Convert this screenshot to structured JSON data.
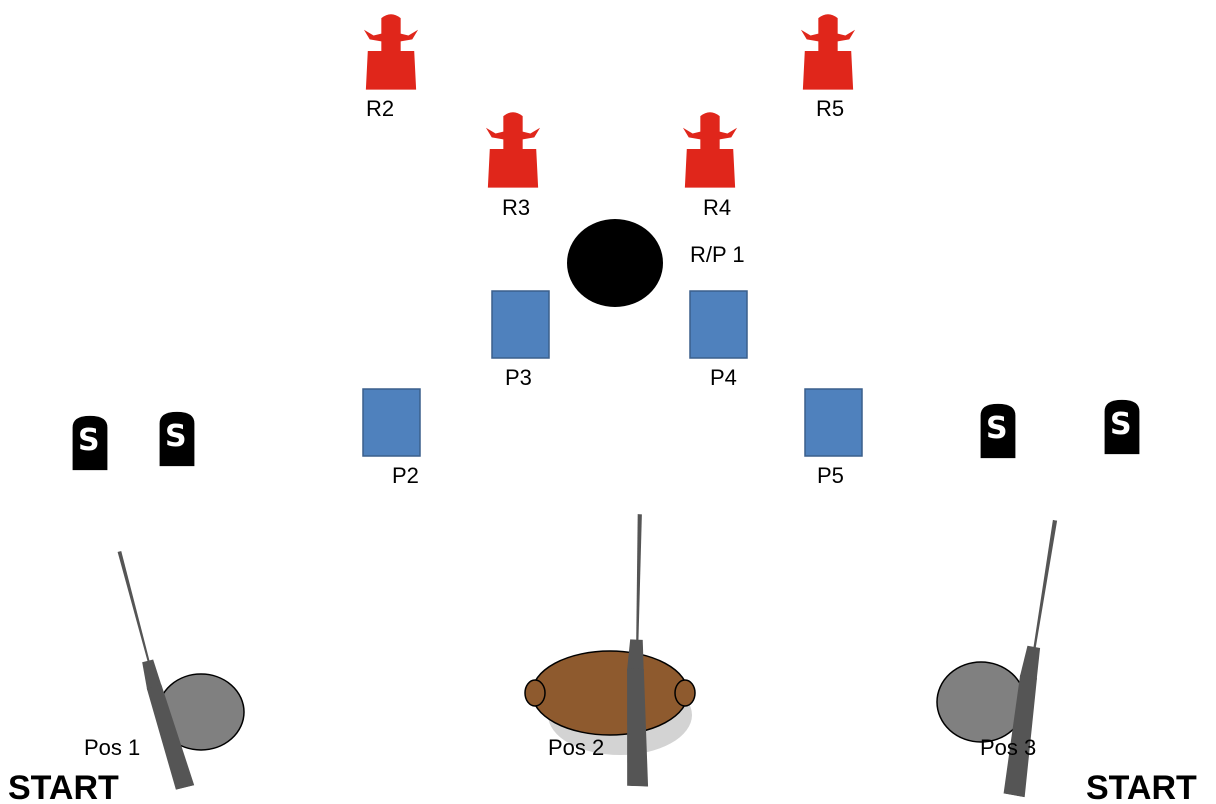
{
  "colors": {
    "rifle_target": "#e0261b",
    "pistol_target": "#4f81bd",
    "rp_target": "#000000",
    "shotgun_target": "#000000",
    "table_round": "#808080",
    "table_oval": "#8e5a2e",
    "gun_stock": "#555555"
  },
  "targets": {
    "rifle": [
      {
        "label": "R2",
        "icon": "cowboy-target-icon"
      },
      {
        "label": "R5",
        "icon": "cowboy-target-icon"
      },
      {
        "label": "R3",
        "icon": "cowboy-target-icon"
      },
      {
        "label": "R4",
        "icon": "cowboy-target-icon"
      }
    ],
    "rifle_pistol": {
      "label": "R/P 1"
    },
    "pistol": [
      {
        "label": "P3"
      },
      {
        "label": "P4"
      },
      {
        "label": "P2"
      },
      {
        "label": "P5"
      }
    ],
    "shotgun": [
      {
        "glyph": "S",
        "icon": "tombstone-s-icon"
      },
      {
        "glyph": "S",
        "icon": "tombstone-s-icon"
      },
      {
        "glyph": "S",
        "icon": "tombstone-s-icon"
      },
      {
        "glyph": "S",
        "icon": "tombstone-s-icon"
      }
    ]
  },
  "positions": [
    {
      "label": "Pos 1",
      "gun": "shotgun-icon"
    },
    {
      "label": "Pos 2",
      "gun": "rifle-icon"
    },
    {
      "label": "Pos 3",
      "gun": "shotgun-icon"
    }
  ],
  "start_labels": {
    "left": "START",
    "right": "START"
  }
}
